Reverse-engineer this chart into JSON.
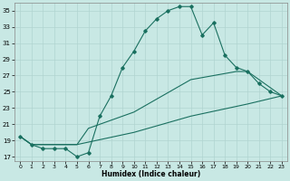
{
  "xlabel": "Humidex (Indice chaleur)",
  "bg_color": "#c8e8e4",
  "line_color": "#1a7060",
  "grid_major_color": "#b0d4d0",
  "grid_minor_color": "#d0e8e4",
  "ylim": [
    16.5,
    36.0
  ],
  "xlim": [
    -0.5,
    23.5
  ],
  "yticks": [
    17,
    19,
    21,
    23,
    25,
    27,
    29,
    31,
    33,
    35
  ],
  "xticks": [
    0,
    1,
    2,
    3,
    4,
    5,
    6,
    7,
    8,
    9,
    10,
    11,
    12,
    13,
    14,
    15,
    16,
    17,
    18,
    19,
    20,
    21,
    22,
    23
  ],
  "line1_x": [
    0,
    1,
    2,
    3,
    4,
    5,
    6,
    7,
    8,
    9,
    10,
    11,
    12,
    13,
    14,
    15,
    16,
    17,
    18,
    19,
    20,
    21,
    22,
    23
  ],
  "line1_y": [
    19.5,
    18.5,
    18.0,
    18.0,
    18.0,
    17.0,
    17.5,
    22.0,
    24.5,
    28.0,
    30.0,
    32.5,
    34.0,
    35.0,
    35.5,
    35.5,
    32.0,
    33.5,
    29.5,
    28.0,
    27.5,
    26.0,
    25.0,
    24.5
  ],
  "line2_x": [
    0,
    1,
    5,
    6,
    10,
    15,
    19,
    20,
    21,
    22,
    23
  ],
  "line2_y": [
    19.5,
    18.5,
    18.5,
    20.5,
    22.5,
    26.5,
    27.5,
    27.5,
    26.5,
    25.5,
    24.5
  ],
  "line3_x": [
    0,
    1,
    5,
    10,
    15,
    20,
    23
  ],
  "line3_y": [
    19.5,
    18.5,
    18.5,
    20.0,
    22.0,
    23.5,
    24.5
  ]
}
